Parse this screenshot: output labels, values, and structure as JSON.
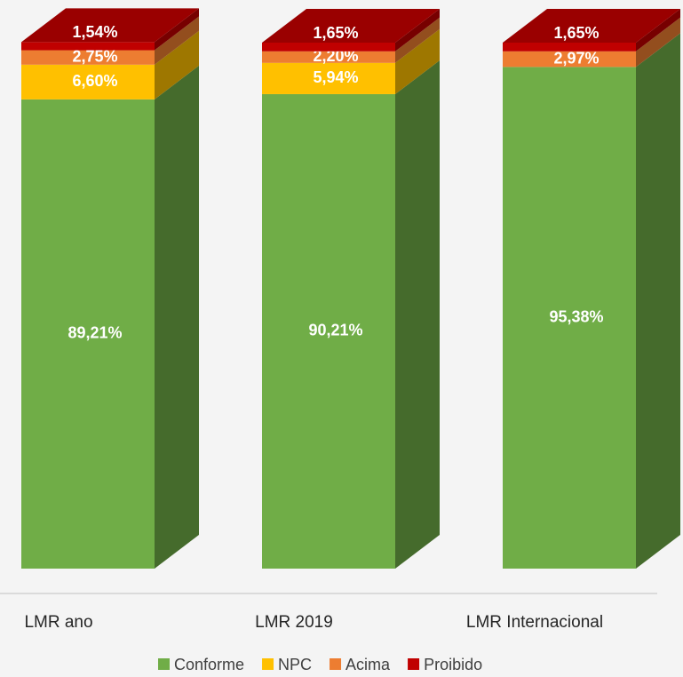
{
  "chart_data": {
    "type": "bar",
    "stacked": true,
    "categories": [
      "LMR ano",
      "LMR 2019",
      "LMR Internacional"
    ],
    "series": [
      {
        "name": "Conforme",
        "color": "#70ad47",
        "values": [
          89.21,
          90.21,
          95.38
        ],
        "value_labels": [
          "89,21%",
          "90,21%",
          "95,38%"
        ]
      },
      {
        "name": "NPC",
        "color": "#ffc000",
        "values": [
          6.6,
          5.94,
          null
        ],
        "value_labels": [
          "6,60%",
          "5,94%",
          null
        ]
      },
      {
        "name": "Acima",
        "color": "#ed7d31",
        "values": [
          2.75,
          2.2,
          2.97
        ],
        "value_labels": [
          "2,75%",
          "2,20%",
          "2,97%"
        ]
      },
      {
        "name": "Proibido",
        "color": "#c00000",
        "values": [
          1.54,
          1.65,
          1.65
        ],
        "value_labels": [
          "1,54%",
          "1,65%",
          "1,65%"
        ]
      }
    ],
    "ylim": [
      0,
      100
    ]
  }
}
